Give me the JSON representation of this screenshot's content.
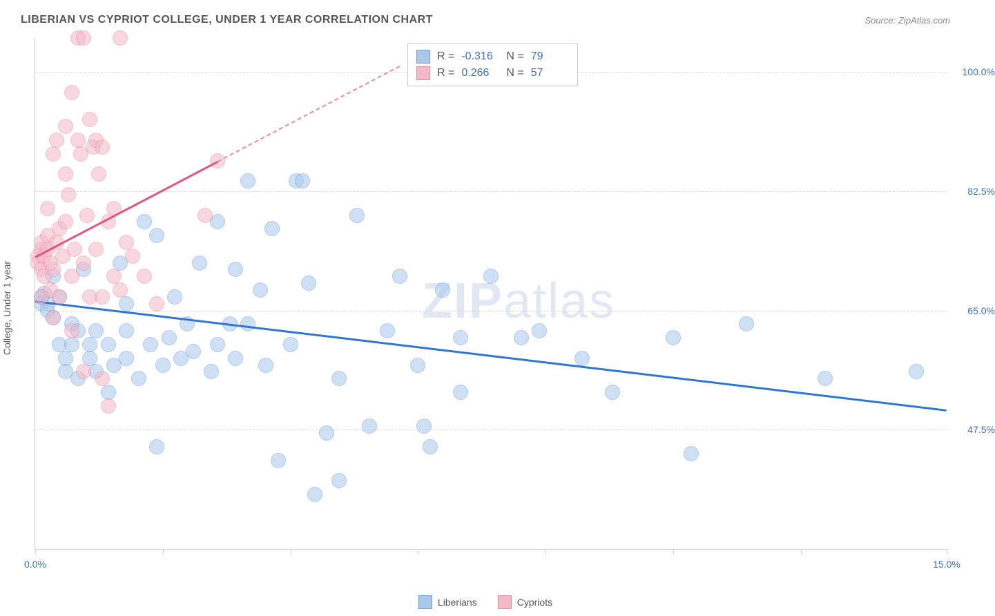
{
  "title": "LIBERIAN VS CYPRIOT COLLEGE, UNDER 1 YEAR CORRELATION CHART",
  "source": "Source: ZipAtlas.com",
  "yaxis_label": "College, Under 1 year",
  "watermark": {
    "bold": "ZIP",
    "light": "atlas"
  },
  "chart": {
    "type": "scatter",
    "background_color": "#ffffff",
    "grid_color": "#d8d8d8",
    "xlim": [
      0.0,
      15.0
    ],
    "ylim": [
      30.0,
      105.0
    ],
    "xticks": [
      0.0,
      2.1,
      4.2,
      6.3,
      8.4,
      10.5,
      12.6,
      15.0
    ],
    "xtick_labels_shown": {
      "0": "0.0%",
      "15": "15.0%"
    },
    "yticks": [
      47.5,
      65.0,
      82.5,
      100.0
    ],
    "ytick_labels": [
      "47.5%",
      "65.0%",
      "82.5%",
      "100.0%"
    ],
    "marker_radius": 10,
    "marker_opacity": 0.55,
    "series": [
      {
        "name": "Liberians",
        "fill_color": "#a9c8ec",
        "stroke_color": "#6fa0dd",
        "R": "-0.316",
        "N": "79",
        "trend": {
          "x1": 0.0,
          "y1": 66.5,
          "x2": 15.0,
          "y2": 50.5,
          "color": "#2f76d2",
          "width": 2.5,
          "dash": false
        },
        "points": [
          [
            0.1,
            67
          ],
          [
            0.1,
            66
          ],
          [
            0.15,
            67.5
          ],
          [
            0.2,
            66
          ],
          [
            0.2,
            65
          ],
          [
            0.3,
            70
          ],
          [
            0.3,
            64
          ],
          [
            0.4,
            67
          ],
          [
            0.4,
            60
          ],
          [
            0.5,
            58
          ],
          [
            0.5,
            56
          ],
          [
            0.6,
            63
          ],
          [
            0.6,
            60
          ],
          [
            0.7,
            62
          ],
          [
            0.7,
            55
          ],
          [
            0.8,
            71
          ],
          [
            0.9,
            58
          ],
          [
            0.9,
            60
          ],
          [
            1.0,
            56
          ],
          [
            1.0,
            62
          ],
          [
            1.2,
            53
          ],
          [
            1.2,
            60
          ],
          [
            1.3,
            57
          ],
          [
            1.4,
            72
          ],
          [
            1.5,
            58
          ],
          [
            1.5,
            62
          ],
          [
            1.5,
            66
          ],
          [
            1.7,
            55
          ],
          [
            1.8,
            78
          ],
          [
            1.9,
            60
          ],
          [
            2.0,
            45
          ],
          [
            2.0,
            76
          ],
          [
            2.1,
            57
          ],
          [
            2.2,
            61
          ],
          [
            2.3,
            67
          ],
          [
            2.4,
            58
          ],
          [
            2.5,
            63
          ],
          [
            2.6,
            59
          ],
          [
            2.7,
            72
          ],
          [
            2.9,
            56
          ],
          [
            3.0,
            78
          ],
          [
            3.0,
            60
          ],
          [
            3.2,
            63
          ],
          [
            3.3,
            58
          ],
          [
            3.3,
            71
          ],
          [
            3.5,
            84
          ],
          [
            3.5,
            63
          ],
          [
            3.7,
            68
          ],
          [
            3.8,
            57
          ],
          [
            3.9,
            77
          ],
          [
            4.0,
            43
          ],
          [
            4.2,
            60
          ],
          [
            4.3,
            84
          ],
          [
            4.4,
            84
          ],
          [
            4.5,
            69
          ],
          [
            4.6,
            38
          ],
          [
            4.8,
            47
          ],
          [
            5.0,
            55
          ],
          [
            5.0,
            40
          ],
          [
            5.3,
            79
          ],
          [
            5.5,
            48
          ],
          [
            5.8,
            62
          ],
          [
            6.0,
            70
          ],
          [
            6.3,
            57
          ],
          [
            6.4,
            48
          ],
          [
            6.5,
            45
          ],
          [
            6.7,
            68
          ],
          [
            7.0,
            61
          ],
          [
            7.0,
            53
          ],
          [
            7.5,
            70
          ],
          [
            8.0,
            61
          ],
          [
            8.3,
            62
          ],
          [
            9.0,
            58
          ],
          [
            9.5,
            53
          ],
          [
            10.5,
            61
          ],
          [
            10.8,
            44
          ],
          [
            11.7,
            63
          ],
          [
            13.0,
            55
          ],
          [
            14.5,
            56
          ]
        ]
      },
      {
        "name": "Cypriots",
        "fill_color": "#f4b8c6",
        "stroke_color": "#e88ba3",
        "R": "0.266",
        "N": "57",
        "trend_solid": {
          "x1": 0.0,
          "y1": 73.0,
          "x2": 3.0,
          "y2": 87.0,
          "color": "#e25583",
          "width": 2.5,
          "dash": false
        },
        "trend_dashed": {
          "x1": 3.0,
          "y1": 87.0,
          "x2": 6.0,
          "y2": 101.0,
          "color": "#e88ba3",
          "width": 2,
          "dash": true
        },
        "points": [
          [
            0.05,
            73
          ],
          [
            0.05,
            72
          ],
          [
            0.1,
            74
          ],
          [
            0.1,
            75
          ],
          [
            0.1,
            71
          ],
          [
            0.1,
            67
          ],
          [
            0.15,
            73
          ],
          [
            0.15,
            70
          ],
          [
            0.2,
            74
          ],
          [
            0.2,
            76
          ],
          [
            0.2,
            80
          ],
          [
            0.25,
            72
          ],
          [
            0.25,
            68
          ],
          [
            0.3,
            71
          ],
          [
            0.3,
            88
          ],
          [
            0.3,
            64
          ],
          [
            0.35,
            75
          ],
          [
            0.35,
            90
          ],
          [
            0.4,
            77
          ],
          [
            0.4,
            67
          ],
          [
            0.45,
            73
          ],
          [
            0.5,
            78
          ],
          [
            0.5,
            85
          ],
          [
            0.5,
            92
          ],
          [
            0.55,
            82
          ],
          [
            0.6,
            97
          ],
          [
            0.6,
            70
          ],
          [
            0.6,
            62
          ],
          [
            0.65,
            74
          ],
          [
            0.7,
            90
          ],
          [
            0.7,
            105
          ],
          [
            0.75,
            88
          ],
          [
            0.8,
            105
          ],
          [
            0.8,
            72
          ],
          [
            0.8,
            56
          ],
          [
            0.85,
            79
          ],
          [
            0.9,
            93
          ],
          [
            0.9,
            67
          ],
          [
            0.95,
            89
          ],
          [
            1.0,
            90
          ],
          [
            1.0,
            74
          ],
          [
            1.05,
            85
          ],
          [
            1.1,
            89
          ],
          [
            1.1,
            67
          ],
          [
            1.1,
            55
          ],
          [
            1.2,
            78
          ],
          [
            1.2,
            51
          ],
          [
            1.3,
            80
          ],
          [
            1.3,
            70
          ],
          [
            1.4,
            105
          ],
          [
            1.4,
            68
          ],
          [
            1.5,
            75
          ],
          [
            1.6,
            73
          ],
          [
            1.8,
            70
          ],
          [
            2.0,
            66
          ],
          [
            2.8,
            79
          ],
          [
            3.0,
            87
          ]
        ]
      }
    ]
  },
  "legend": {
    "items": [
      {
        "label": "Liberians",
        "fill": "#a9c8ec",
        "stroke": "#6fa0dd"
      },
      {
        "label": "Cypriots",
        "fill": "#f4b8c6",
        "stroke": "#e88ba3"
      }
    ]
  },
  "stats_box": {
    "rows": [
      {
        "swatch_fill": "#a9c8ec",
        "swatch_stroke": "#6fa0dd",
        "R": "-0.316",
        "N": "79"
      },
      {
        "swatch_fill": "#f4b8c6",
        "swatch_stroke": "#e88ba3",
        "R": "0.266",
        "N": "57"
      }
    ],
    "labels": {
      "R": "R =",
      "N": "N ="
    }
  }
}
